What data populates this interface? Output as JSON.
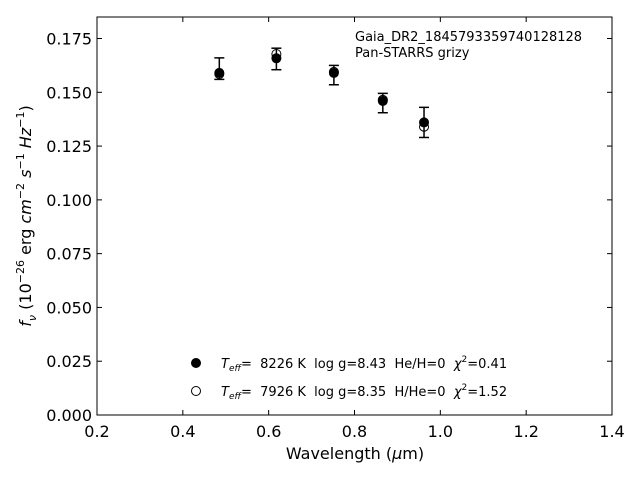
{
  "chart_data": {
    "type": "scatter",
    "xlabel": "Wavelength (μm)",
    "ylabel": "f_ν (10^-26 erg cm^-2 s^-1 Hz^-1)",
    "xlim": [
      0.2,
      1.4
    ],
    "ylim": [
      0.0,
      0.185
    ],
    "xticks": [
      "0.2",
      "0.4",
      "0.6",
      "0.8",
      "1.0",
      "1.2",
      "1.4"
    ],
    "xtick_values": [
      0.2,
      0.4,
      0.6,
      0.8,
      1.0,
      1.2,
      1.4
    ],
    "yticks": [
      "0.000",
      "0.025",
      "0.050",
      "0.075",
      "0.100",
      "0.125",
      "0.150",
      "0.175"
    ],
    "ytick_values": [
      0.0,
      0.025,
      0.05,
      0.075,
      0.1,
      0.125,
      0.15,
      0.175
    ],
    "grid": false,
    "annotations": [
      "Gaia_DR2_1845793359740128128",
      "Pan-STARRS grizy"
    ],
    "observed": {
      "x": [
        0.485,
        0.618,
        0.752,
        0.866,
        0.962
      ],
      "y": [
        0.161,
        0.1655,
        0.158,
        0.145,
        0.136
      ],
      "yerr": [
        0.005,
        0.005,
        0.0045,
        0.0045,
        0.007
      ]
    },
    "series": [
      {
        "name": "T_eff= 8226 K  log g=8.43  He/H=0  χ²=0.41",
        "marker": "filled-circle",
        "x": [
          0.485,
          0.618,
          0.752,
          0.866,
          0.962
        ],
        "y": [
          0.159,
          0.1658,
          0.159,
          0.146,
          0.136
        ]
      },
      {
        "name": "T_eff= 7926 K  log g=8.35  H/He=0  χ²=1.52",
        "marker": "open-circle",
        "x": [
          0.485,
          0.618,
          0.752,
          0.866,
          0.962
        ],
        "y": [
          0.1585,
          0.1678,
          0.1595,
          0.1465,
          0.134
        ]
      }
    ],
    "legend": {
      "placement": "lower-center",
      "entries": [
        {
          "teff_label": "T",
          "teff_sub": "eff",
          "rest": "=  8226 K  log g=8.43  He/H=0  ",
          "chi": "χ",
          "chi_sup": "2",
          "chi_rest": "=0.41"
        },
        {
          "teff_label": "T",
          "teff_sub": "eff",
          "rest": "=  7926 K  log g=8.35  H/He=0  ",
          "chi": "χ",
          "chi_sup": "2",
          "chi_rest": "=1.52"
        }
      ]
    }
  }
}
